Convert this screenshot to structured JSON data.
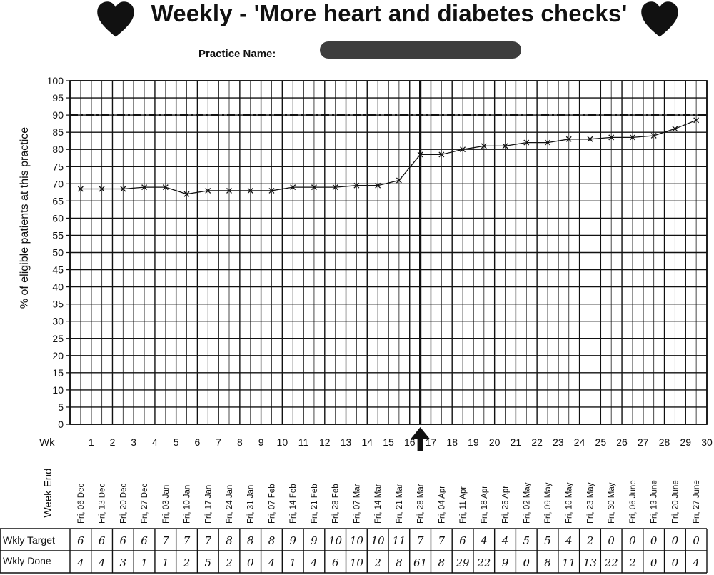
{
  "header": {
    "title": "Weekly - 'More heart and diabetes checks'",
    "practice_label": "Practice Name:"
  },
  "chart_data": {
    "type": "line",
    "title": "Weekly - 'More heart and diabetes checks'",
    "ylabel": "% of eligible patients at this practice",
    "xlabel": "Wk",
    "ylim": [
      0,
      100
    ],
    "y_ticks": [
      0,
      5,
      10,
      15,
      20,
      25,
      30,
      35,
      40,
      45,
      50,
      55,
      60,
      65,
      70,
      75,
      80,
      85,
      90,
      95,
      100
    ],
    "x": [
      1,
      2,
      3,
      4,
      5,
      6,
      7,
      8,
      9,
      10,
      11,
      12,
      13,
      14,
      15,
      16,
      17,
      18,
      19,
      20,
      21,
      22,
      23,
      24,
      25,
      26,
      27,
      28,
      29,
      30
    ],
    "series": [
      {
        "values": [
          68.5,
          68.5,
          68.5,
          69,
          69,
          67,
          68,
          68,
          68,
          68,
          69,
          69,
          69,
          69.5,
          69.5,
          71,
          78.5,
          78.5,
          80,
          81,
          81,
          82,
          82,
          83,
          83,
          83.5,
          83.5,
          84,
          86,
          88.5
        ]
      }
    ],
    "target_line": 90,
    "intervention_week": 16.5,
    "grid": true,
    "week_end_label": "Week End",
    "week_ends": [
      "Fri, 06 Dec",
      "Fri, 13 Dec",
      "Fri, 20 Dec",
      "Fri, 27 Dec",
      "Fri, 03 Jan",
      "Fri, 10 Jan",
      "Fri, 17 Jan",
      "Fri, 24 Jan",
      "Fri, 31 Jan",
      "Fri, 07 Feb",
      "Fri, 14 Feb",
      "Fri, 21 Feb",
      "Fri, 28 Feb",
      "Fri, 07 Mar",
      "Fri, 14 Mar",
      "Fri, 21 Mar",
      "Fri, 28 Mar",
      "Fri, 04 Apr",
      "Fri, 11 Apr",
      "Fri, 18 Apr",
      "Fri, 25 Apr",
      "Fri, 02 May",
      "Fri, 09 May",
      "Fri, 16 May",
      "Fri, 23 May",
      "Fri, 30 May",
      "Fri, 06 June",
      "Fri, 13 June",
      "Fri, 20 June",
      "Fri, 27 June"
    ],
    "table": {
      "target_label": "Wkly Target",
      "done_label": "Wkly Done",
      "weekly_target": [
        "6",
        "6",
        "6",
        "6",
        "7",
        "7",
        "7",
        "8",
        "8",
        "8",
        "9",
        "9",
        "10",
        "10",
        "10",
        "11",
        "7",
        "7",
        "6",
        "4",
        "4",
        "5",
        "5",
        "4",
        "2",
        "0",
        "0",
        "0",
        "0",
        "0"
      ],
      "weekly_done": [
        "4",
        "4",
        "3",
        "1",
        "1",
        "2",
        "5",
        "2",
        "0",
        "4",
        "1",
        "4",
        "6",
        "10",
        "2",
        "8",
        "61",
        "8",
        "29",
        "22",
        "9",
        "0",
        "8",
        "11",
        "13",
        "22",
        "2",
        "0",
        "0",
        "4"
      ]
    }
  },
  "colors": {
    "ink": "#111111",
    "background": "#ffffff"
  }
}
